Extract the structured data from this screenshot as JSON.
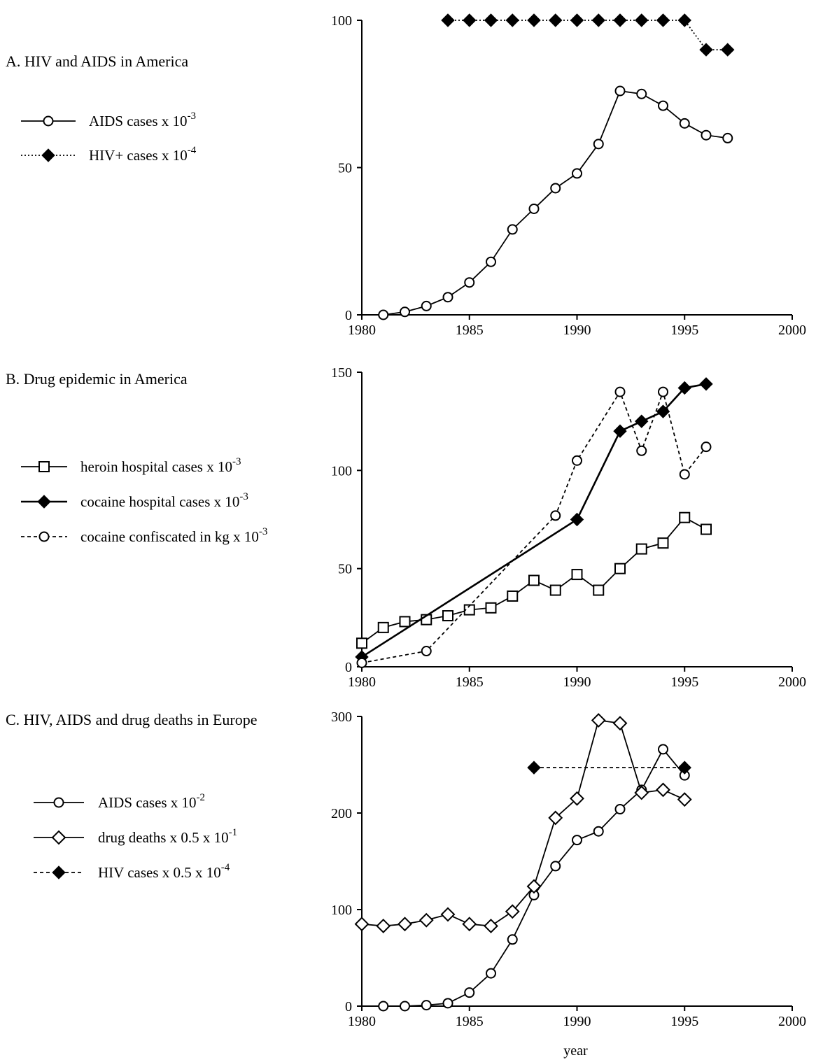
{
  "chart_data": [
    {
      "panel": "A",
      "type": "line",
      "title": "A.  HIV and AIDS in America",
      "xlim": [
        1980,
        2000
      ],
      "ylim": [
        0,
        100
      ],
      "xticks": [
        "1980",
        "1985",
        "1990",
        "1995",
        "2000"
      ],
      "yticks": [
        "0",
        "50",
        "100"
      ],
      "xlabel": "",
      "ylabel": "",
      "legend": "left",
      "grid": false,
      "series": [
        {
          "name": "AIDS cases x 10",
          "exp": "-3",
          "style": "solid",
          "marker": "open-circle",
          "x": [
            1981,
            1982,
            1983,
            1984,
            1985,
            1986,
            1987,
            1988,
            1989,
            1990,
            1991,
            1992,
            1993,
            1994,
            1995,
            1996,
            1997
          ],
          "y": [
            0,
            1,
            3,
            6,
            11,
            18,
            29,
            36,
            43,
            48,
            58,
            76,
            75,
            71,
            65,
            61,
            60
          ]
        },
        {
          "name": "HIV+ cases x 10",
          "exp": "-4",
          "style": "dotted",
          "marker": "filled-diamond",
          "x": [
            1984,
            1985,
            1986,
            1987,
            1988,
            1989,
            1990,
            1991,
            1992,
            1993,
            1994,
            1995,
            1996,
            1997
          ],
          "y": [
            100,
            100,
            100,
            100,
            100,
            100,
            100,
            100,
            100,
            100,
            100,
            100,
            90,
            90
          ]
        }
      ]
    },
    {
      "panel": "B",
      "type": "line",
      "title": "B.  Drug epidemic in America",
      "xlim": [
        1980,
        2000
      ],
      "ylim": [
        0,
        150
      ],
      "xticks": [
        "1980",
        "1985",
        "1990",
        "1995",
        "2000"
      ],
      "yticks": [
        "0",
        "50",
        "100",
        "150"
      ],
      "xlabel": "",
      "ylabel": "",
      "legend": "left",
      "grid": false,
      "series": [
        {
          "name": "heroin hospital cases x 10",
          "exp": "-3",
          "style": "solid",
          "marker": "open-square",
          "x": [
            1980,
            1981,
            1982,
            1983,
            1984,
            1985,
            1986,
            1987,
            1988,
            1989,
            1990,
            1991,
            1992,
            1993,
            1994,
            1995,
            1996
          ],
          "y": [
            12,
            20,
            23,
            24,
            26,
            29,
            30,
            36,
            44,
            39,
            47,
            39,
            50,
            60,
            63,
            76,
            70
          ]
        },
        {
          "name": "cocaine hospital cases x 10",
          "exp": "-3",
          "style": "solid-thick",
          "marker": "filled-diamond",
          "x": [
            1980,
            1990,
            1992,
            1993,
            1994,
            1995,
            1996
          ],
          "y": [
            5,
            75,
            120,
            125,
            130,
            142,
            144
          ]
        },
        {
          "name": "cocaine confiscated in kg x 10",
          "exp": "-3",
          "style": "dashed",
          "marker": "open-circle",
          "x": [
            1980,
            1983,
            1989,
            1990,
            1992,
            1993,
            1994,
            1995,
            1996
          ],
          "y": [
            2,
            8,
            77,
            105,
            140,
            110,
            140,
            98,
            112
          ]
        }
      ]
    },
    {
      "panel": "C",
      "type": "line",
      "title": "C.  HIV, AIDS and drug deaths in Europe",
      "xlim": [
        1980,
        2000
      ],
      "ylim": [
        0,
        300
      ],
      "xticks": [
        "1980",
        "1985",
        "1990",
        "1995",
        "2000"
      ],
      "yticks": [
        "0",
        "100",
        "200",
        "300"
      ],
      "xlabel": "year",
      "ylabel": "",
      "legend": "left",
      "grid": false,
      "series": [
        {
          "name": "AIDS cases x 10",
          "exp": "-2",
          "style": "solid",
          "marker": "open-circle",
          "x": [
            1981,
            1982,
            1983,
            1984,
            1985,
            1986,
            1987,
            1988,
            1989,
            1990,
            1991,
            1992,
            1993,
            1994,
            1995
          ],
          "y": [
            0,
            0,
            1,
            3,
            14,
            34,
            69,
            115,
            145,
            172,
            181,
            204,
            224,
            266,
            239
          ]
        },
        {
          "name": "drug deaths x 0.5 x 10",
          "exp": "-1",
          "style": "solid",
          "marker": "open-diamond",
          "x": [
            1980,
            1981,
            1982,
            1983,
            1984,
            1985,
            1986,
            1987,
            1988,
            1989,
            1990,
            1991,
            1992,
            1993,
            1994,
            1995
          ],
          "y": [
            85,
            83,
            85,
            89,
            95,
            85,
            83,
            98,
            124,
            195,
            215,
            296,
            293,
            221,
            224,
            214
          ]
        },
        {
          "name": "HIV cases x 0.5 x 10",
          "exp": "-4",
          "style": "dashed",
          "marker": "filled-diamond",
          "x": [
            1988,
            1995
          ],
          "y": [
            247,
            247
          ]
        }
      ]
    }
  ]
}
